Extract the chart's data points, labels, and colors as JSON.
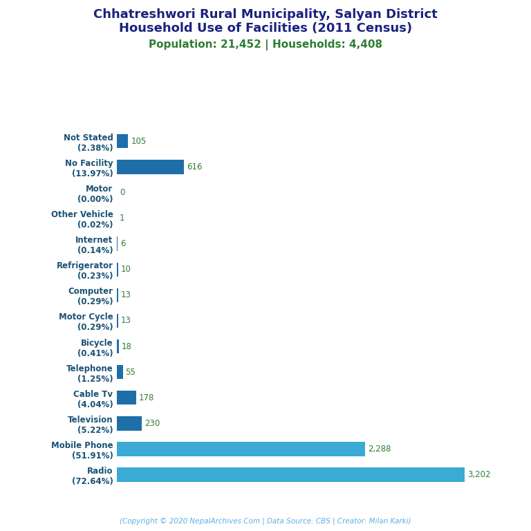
{
  "title_line1": "Chhatreshwori Rural Municipality, Salyan District",
  "title_line2": "Household Use of Facilities (2011 Census)",
  "subtitle": "Population: 21,452 | Households: 4,408",
  "copyright": "(Copyright © 2020 NepalArchives.Com | Data Source: CBS | Creator: Milan Karki)",
  "categories": [
    "Not Stated\n(2.38%)",
    "No Facility\n(13.97%)",
    "Motor\n(0.00%)",
    "Other Vehicle\n(0.02%)",
    "Internet\n(0.14%)",
    "Refrigerator\n(0.23%)",
    "Computer\n(0.29%)",
    "Motor Cycle\n(0.29%)",
    "Bicycle\n(0.41%)",
    "Telephone\n(1.25%)",
    "Cable Tv\n(4.04%)",
    "Television\n(5.22%)",
    "Mobile Phone\n(51.91%)",
    "Radio\n(72.64%)"
  ],
  "values": [
    105,
    616,
    0,
    1,
    6,
    10,
    13,
    13,
    18,
    55,
    178,
    230,
    2288,
    3202
  ],
  "value_labels": [
    "105",
    "616",
    "0",
    "1",
    "6",
    "10",
    "13",
    "13",
    "18",
    "55",
    "178",
    "230",
    "2,288",
    "3,202"
  ],
  "bar_colors": [
    "#1e6fa8",
    "#1e6fa8",
    "#1e6fa8",
    "#1e6fa8",
    "#1e6fa8",
    "#1e6fa8",
    "#1e6fa8",
    "#1e6fa8",
    "#1e6fa8",
    "#1e6fa8",
    "#1e6fa8",
    "#1e6fa8",
    "#3baad4",
    "#3baad4"
  ],
  "title_color": "#1a237e",
  "subtitle_color": "#2e7d32",
  "label_color": "#1a5276",
  "value_color": "#2e7d32",
  "copyright_color": "#5dade2",
  "bg_color": "#ffffff",
  "figsize": [
    7.68,
    7.68
  ],
  "dpi": 100
}
